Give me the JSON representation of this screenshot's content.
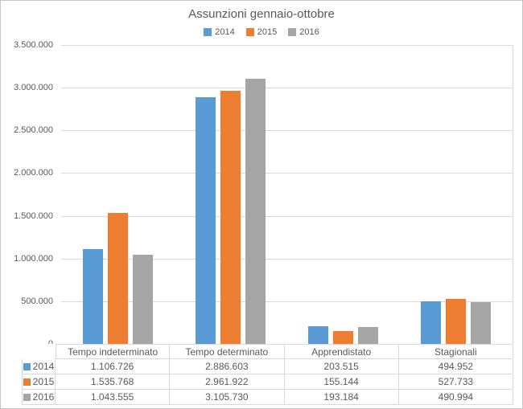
{
  "chart_data": {
    "type": "bar",
    "title": "Assunzioni gennaio-ottobre",
    "categories": [
      "Tempo indeterminato",
      "Tempo determinato",
      "Apprendistato",
      "Stagionali"
    ],
    "series": [
      {
        "name": "2014",
        "color": "#5b9bd5",
        "values": [
          1106726,
          2886603,
          203515,
          494952
        ],
        "labels": [
          "1.106.726",
          "2.886.603",
          "203.515",
          "494.952"
        ]
      },
      {
        "name": "2015",
        "color": "#ed7d31",
        "values": [
          1535768,
          2961922,
          155144,
          527733
        ],
        "labels": [
          "1.535.768",
          "2.961.922",
          "155.144",
          "527.733"
        ]
      },
      {
        "name": "2016",
        "color": "#a5a5a5",
        "values": [
          1043555,
          3105730,
          193184,
          490994
        ],
        "labels": [
          "1.043.555",
          "3.105.730",
          "193.184",
          "490.994"
        ]
      }
    ],
    "ylim": [
      0,
      3500000
    ],
    "ytick_step": 500000,
    "ytick_labels": [
      "0",
      "500.000",
      "1.000.000",
      "1.500.000",
      "2.000.000",
      "2.500.000",
      "3.000.000",
      "3.500.000"
    ],
    "grid": true,
    "legend_position": "top-center",
    "data_table_shown": true
  },
  "colors": {
    "text": "#595959",
    "gridline": "#d9d9d9",
    "frame_border": "#c6c6c6",
    "background": "#ffffff"
  }
}
